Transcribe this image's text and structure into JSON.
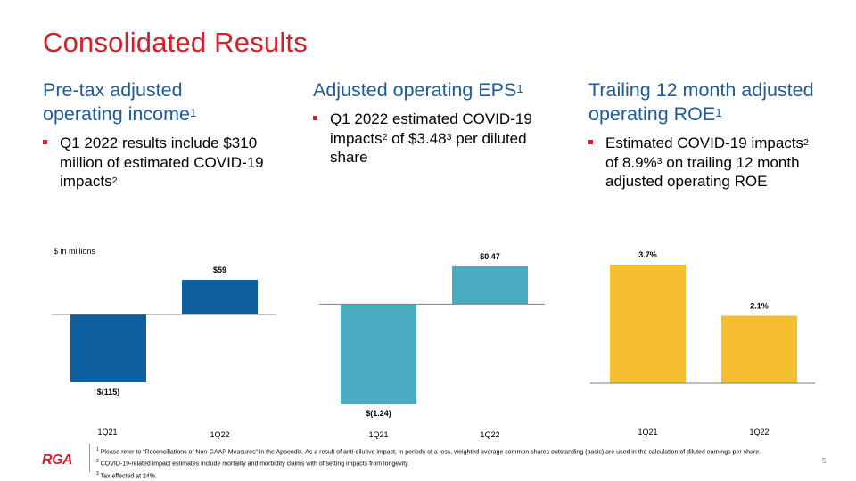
{
  "title": "Consolidated Results",
  "columns": [
    {
      "heading": "Pre-tax adjusted operating income",
      "heading_sup": "1",
      "bullet_parts": [
        "Q1 2022 results include $310 million of estimated COVID-19 impacts",
        "2",
        ""
      ]
    },
    {
      "heading": "Adjusted operating EPS",
      "heading_sup": "1",
      "bullet_parts": [
        "Q1 2022 estimated COVID-19 impacts",
        "2",
        " of $3.48",
        "3",
        " per diluted share"
      ]
    },
    {
      "heading": "Trailing 12 month adjusted operating ROE",
      "heading_sup": "1",
      "bullet_parts": [
        "Estimated COVID-19 impacts",
        "2",
        " of 8.9%",
        "3",
        " on trailing 12 month adjusted operating ROE"
      ]
    }
  ],
  "unit_label": "$ in millions",
  "chart_data": [
    {
      "type": "bar",
      "categories": [
        "1Q21",
        "1Q22"
      ],
      "values": [
        -115,
        59
      ],
      "labels": [
        "$(115)",
        "$59"
      ],
      "ylim": [
        -115,
        59
      ],
      "color": "#0d5fa0"
    },
    {
      "type": "bar",
      "categories": [
        "1Q21",
        "1Q22"
      ],
      "values": [
        -1.24,
        0.47
      ],
      "labels": [
        "$(1.24)",
        "$0.47"
      ],
      "ylim": [
        -1.24,
        0.47
      ],
      "color": "#4aacc0"
    },
    {
      "type": "bar",
      "categories": [
        "1Q21",
        "1Q22"
      ],
      "values": [
        3.7,
        2.1
      ],
      "labels": [
        "3.7%",
        "2.1%"
      ],
      "ylim": [
        0,
        3.7
      ],
      "color": "#f6bd30"
    }
  ],
  "footnotes": [
    {
      "num": "1",
      "text": "Please refer to “Reconciliations of Non-GAAP Measures” in the Appendix. As a result of anti-dilutive impact, in periods of a loss, weighted average common shares outstanding (basic) are used in the calculation of diluted earnings per share."
    },
    {
      "num": "2",
      "text": "COVID-19-related impact estimates include mortality and morbidity claims with offsetting impacts from longevity."
    },
    {
      "num": "3",
      "text": "Tax effected at 24%."
    }
  ],
  "logo_text": "RGA",
  "page_number": "5"
}
